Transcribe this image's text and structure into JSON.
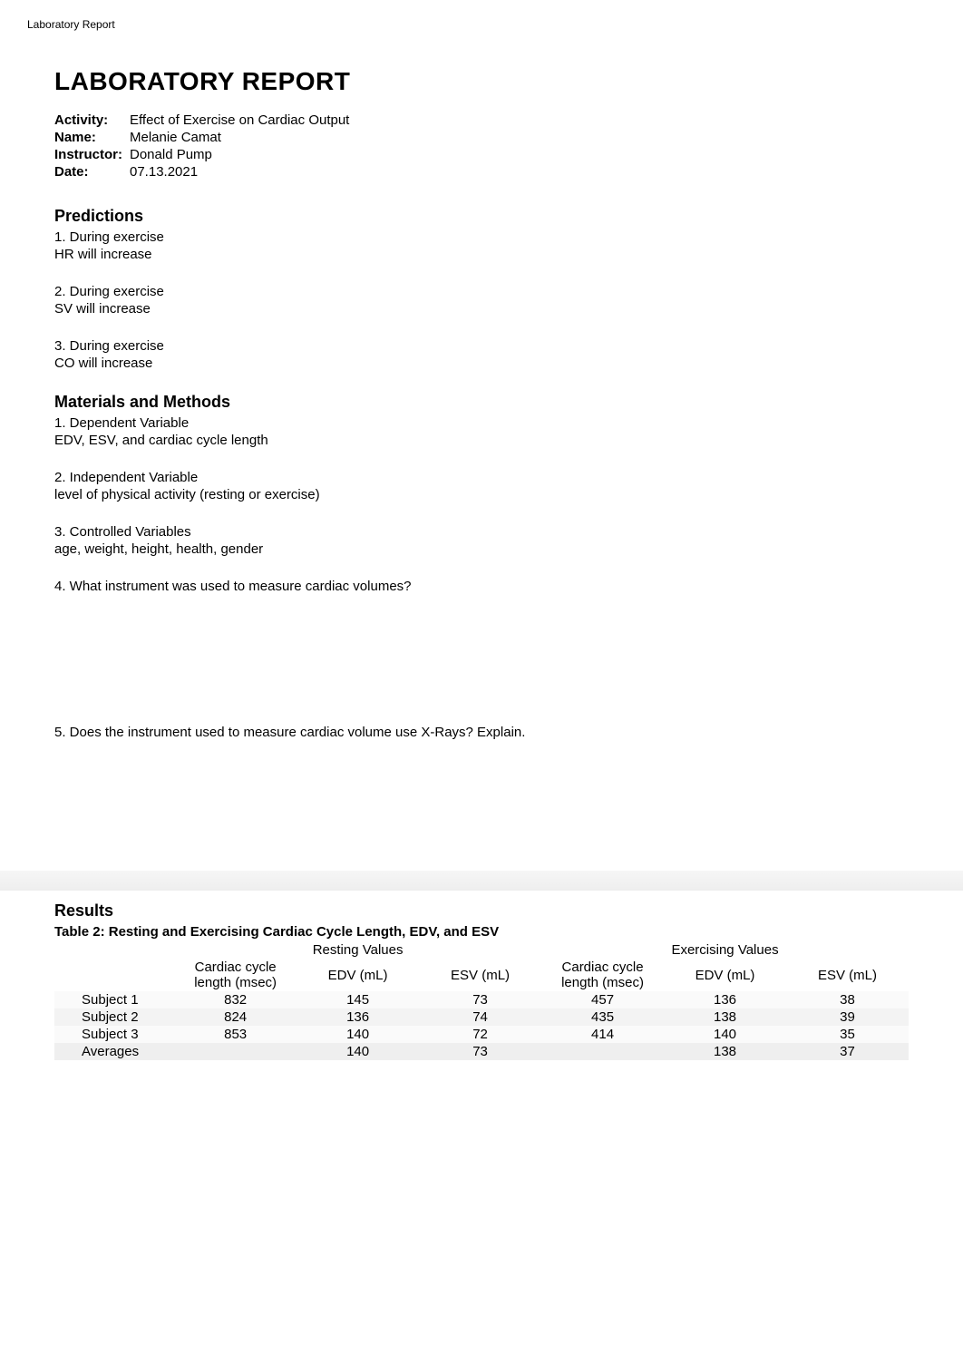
{
  "header": {
    "top_label": "Laboratory Report",
    "title": "LABORATORY REPORT"
  },
  "meta": {
    "activity_label": "Activity:",
    "activity_value": "Effect of Exercise on Cardiac Output",
    "name_label": "Name:",
    "name_value": "Melanie Camat",
    "instructor_label": "Instructor:",
    "instructor_value": "Donald Pump",
    "date_label": "Date:",
    "date_value": "07.13.2021"
  },
  "predictions": {
    "heading": "Predictions",
    "items": [
      {
        "q": "1. During exercise",
        "a": "HR will increase"
      },
      {
        "q": "2. During exercise",
        "a": "SV will increase"
      },
      {
        "q": "3. During exercise",
        "a": "CO will increase"
      }
    ]
  },
  "materials": {
    "heading": "Materials and Methods",
    "items": [
      {
        "q": "1. Dependent Variable",
        "a": "EDV, ESV, and cardiac cycle length"
      },
      {
        "q": "2. Independent Variable",
        "a": "level of physical activity (resting or exercise)"
      },
      {
        "q": "3. Controlled Variables",
        "a": "age, weight, height, health, gender"
      },
      {
        "q": "4. What instrument was used to measure cardiac volumes?",
        "a": ""
      },
      {
        "q": "5. Does the instrument used to measure cardiac volume use X-Rays? Explain.",
        "a": ""
      }
    ]
  },
  "results": {
    "heading": "Results",
    "table_title": "Table 2: Resting and Exercising Cardiac Cycle Length, EDV, and ESV",
    "group_headers": {
      "resting": "Resting Values",
      "exercising": "Exercising Values"
    },
    "columns": {
      "c1": "Cardiac cycle length (msec)",
      "c2": "EDV (mL)",
      "c3": "ESV (mL)",
      "c4": "Cardiac cycle length (msec)",
      "c5": "EDV (mL)",
      "c6": "ESV (mL)"
    },
    "rows": [
      {
        "label": "Subject 1",
        "v": [
          "832",
          "145",
          "73",
          "457",
          "136",
          "38"
        ]
      },
      {
        "label": "Subject 2",
        "v": [
          "824",
          "136",
          "74",
          "435",
          "138",
          "39"
        ]
      },
      {
        "label": "Subject 3",
        "v": [
          "853",
          "140",
          "72",
          "414",
          "140",
          "35"
        ]
      },
      {
        "label": "Averages",
        "v": [
          "",
          "140",
          "73",
          "",
          "138",
          "37"
        ]
      }
    ]
  }
}
